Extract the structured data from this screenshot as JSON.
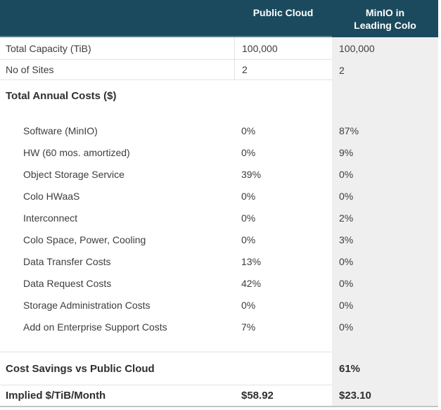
{
  "colors": {
    "header_bg": "#1b4a5e",
    "header_text": "#ffffff",
    "highlight_column_bg": "#efefef",
    "row_border": "#e2e2e2",
    "header_underline": "#557f8e",
    "bottom_border": "#c4c4c4",
    "body_text": "#3d3d3d",
    "bold_text": "#2f2f2f"
  },
  "chart_data": {
    "type": "table",
    "title": "Public Cloud vs MinIO in Leading Colo cost comparison",
    "columns": [
      "",
      "Public Cloud",
      "MinIO in Leading Colo"
    ],
    "rows": [
      [
        "Total Capacity (TiB)",
        "100,000",
        "100,000"
      ],
      [
        "No of Sites",
        "2",
        "2"
      ],
      [
        "Total Annual Costs ($)",
        "",
        ""
      ],
      [
        "Software (MinIO)",
        "0%",
        "87%"
      ],
      [
        "HW (60 mos. amortized)",
        "0%",
        "9%"
      ],
      [
        "Object Storage Service",
        "39%",
        "0%"
      ],
      [
        "Colo HWaaS",
        "0%",
        "0%"
      ],
      [
        "Interconnect",
        "0%",
        "2%"
      ],
      [
        "Colo Space, Power, Cooling",
        "0%",
        "3%"
      ],
      [
        "Data Transfer Costs",
        "13%",
        "0%"
      ],
      [
        "Data Request Costs",
        "42%",
        "0%"
      ],
      [
        "Storage Administration Costs",
        "0%",
        "0%"
      ],
      [
        "Add on Enterprise Support Costs",
        "7%",
        "0%"
      ],
      [
        "Cost Savings vs Public Cloud",
        "",
        "61%"
      ],
      [
        "Implied $/TiB/Month",
        "$58.92",
        "$23.10"
      ]
    ]
  }
}
